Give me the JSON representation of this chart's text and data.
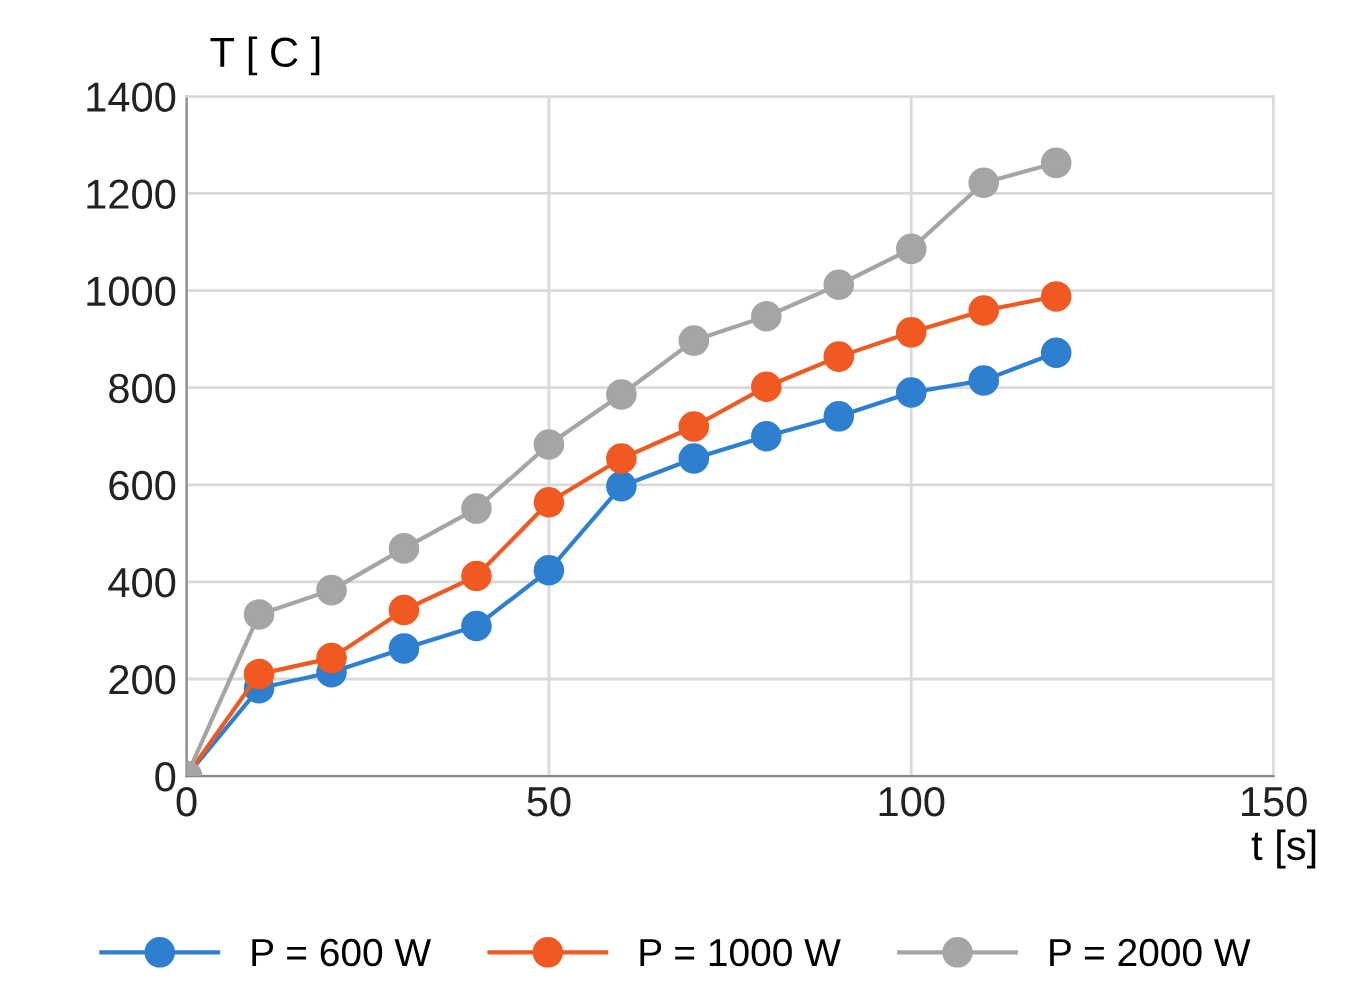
{
  "chart_data": {
    "type": "line",
    "xlabel": "t [s]",
    "ylabel": "T [ C ]",
    "x": [
      0,
      10,
      20,
      30,
      40,
      50,
      60,
      70,
      80,
      90,
      100,
      110,
      120
    ],
    "series": [
      {
        "name": "P = 600 W",
        "color": "#2e7fd0",
        "values": [
          0,
          181,
          214,
          263,
          309,
          424,
          597,
          654,
          700,
          741,
          790,
          815,
          872
        ]
      },
      {
        "name": "P = 1000 W",
        "color": "#f05a22",
        "values": [
          0,
          210,
          243,
          342,
          412,
          564,
          654,
          720,
          802,
          864,
          914,
          959,
          988
        ]
      },
      {
        "name": "P = 2000 W",
        "color": "#a5a5a5",
        "values": [
          0,
          333,
          383,
          469,
          551,
          683,
          786,
          897,
          947,
          1012,
          1086,
          1222,
          1263
        ]
      }
    ],
    "xlim": [
      0,
      150
    ],
    "xticks": [
      0,
      50,
      100,
      150
    ],
    "ylim": [
      0,
      1400
    ],
    "yticks": [
      0,
      200,
      400,
      600,
      800,
      1000,
      1200,
      1400
    ],
    "grid": true,
    "legend": "bottom",
    "marker": "circle",
    "line_style": "solid"
  }
}
